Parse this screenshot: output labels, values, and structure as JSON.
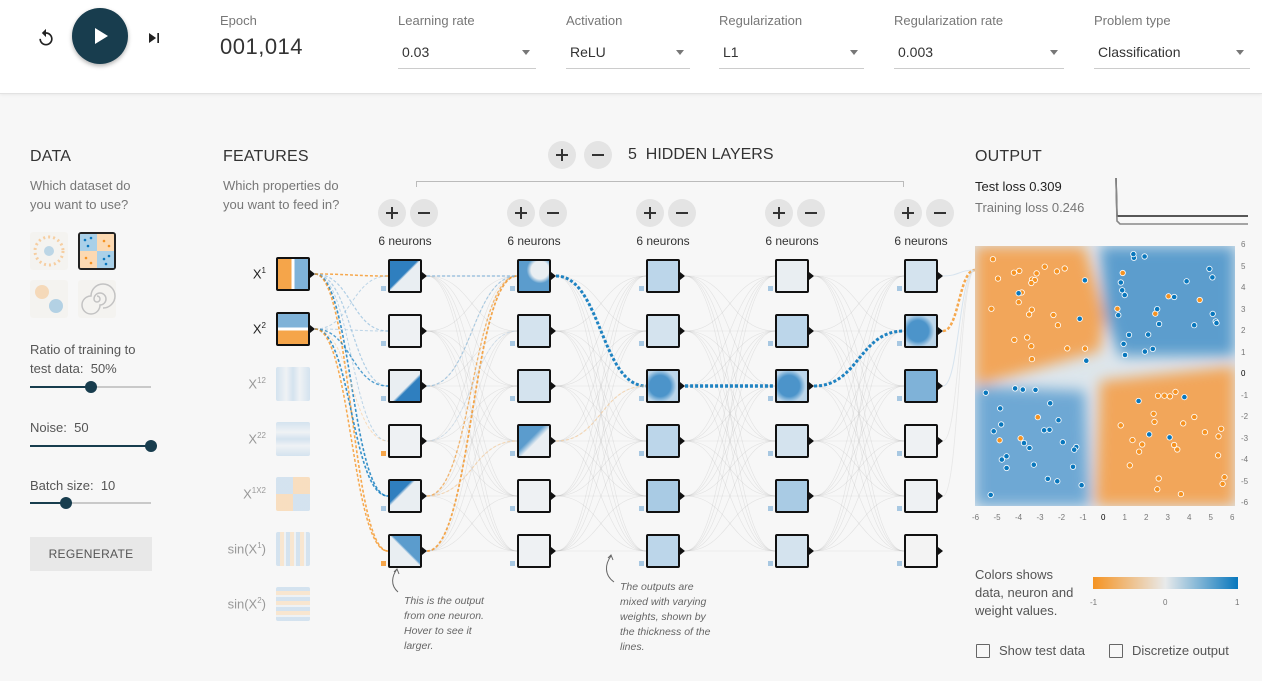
{
  "controls": {
    "reset_icon": "reset-icon",
    "play_icon": "play-icon",
    "step_icon": "step-forward-icon"
  },
  "epoch": {
    "label": "Epoch",
    "value": "001,014"
  },
  "learning_rate": {
    "label": "Learning rate",
    "value": "0.03"
  },
  "activation": {
    "label": "Activation",
    "value": "ReLU"
  },
  "regularization": {
    "label": "Regularization",
    "value": "L1"
  },
  "regularization_rate": {
    "label": "Regularization rate",
    "value": "0.003"
  },
  "problem_type": {
    "label": "Problem type",
    "value": "Classification"
  },
  "data": {
    "title": "DATA",
    "question": "Which dataset do you want to use?",
    "datasets": [
      "circle",
      "xor",
      "gaussian",
      "spiral"
    ],
    "selected_dataset": "xor",
    "ratio_label": "Ratio of training to test data:",
    "ratio_value": "50%",
    "ratio": 0.5,
    "noise_label": "Noise:",
    "noise_value": "50",
    "noise": 1.0,
    "batch_label": "Batch size:",
    "batch_value": "10",
    "batch": 0.3,
    "regenerate_label": "REGENERATE"
  },
  "features": {
    "title": "FEATURES",
    "question": "Which properties do you want to feed in?",
    "items": [
      {
        "base": "X",
        "sup": "1",
        "active": true
      },
      {
        "base": "X",
        "sup": "2",
        "active": true
      },
      {
        "base": "X",
        "sup": "12",
        "active": false
      },
      {
        "base": "X",
        "sup": "22",
        "active": false
      },
      {
        "base": "X",
        "sup": "1X2",
        "active": false
      },
      {
        "base": "sin(X",
        "sup": "1",
        "tail": ")",
        "active": false
      },
      {
        "base": "sin(X",
        "sup": "2",
        "tail": ")",
        "active": false
      }
    ]
  },
  "hidden": {
    "count": "5",
    "label": "HIDDEN LAYERS",
    "layers": [
      {
        "neurons_label": "6 neurons"
      },
      {
        "neurons_label": "6 neurons"
      },
      {
        "neurons_label": "6 neurons"
      },
      {
        "neurons_label": "6 neurons"
      },
      {
        "neurons_label": "6 neurons"
      }
    ]
  },
  "notes": {
    "neuron_note": "This is the output from one neuron. Hover to see it larger.",
    "weights_note": "The outputs are mixed with varying weights, shown by the thickness of the lines."
  },
  "output": {
    "title": "OUTPUT",
    "test_loss_label": "Test loss",
    "test_loss": "0.309",
    "training_loss_label": "Training loss",
    "training_loss": "0.246",
    "x_ticks": [
      "-6",
      "-5",
      "-4",
      "-3",
      "-2",
      "-1",
      "0",
      "1",
      "2",
      "3",
      "4",
      "5",
      "6"
    ],
    "y_ticks": [
      "6",
      "5",
      "4",
      "3",
      "2",
      "1",
      "0",
      "-1",
      "-2",
      "-3",
      "-4",
      "-5",
      "-6"
    ],
    "legend_text": "Colors shows data, neuron and weight values.",
    "legend_ticks": [
      "-1",
      "0",
      "1"
    ],
    "show_test_label": "Show test data",
    "discretize_label": "Discretize output"
  },
  "colors": {
    "orange": "#f59322",
    "blue": "#0877bd",
    "dark": "#183d4e"
  }
}
